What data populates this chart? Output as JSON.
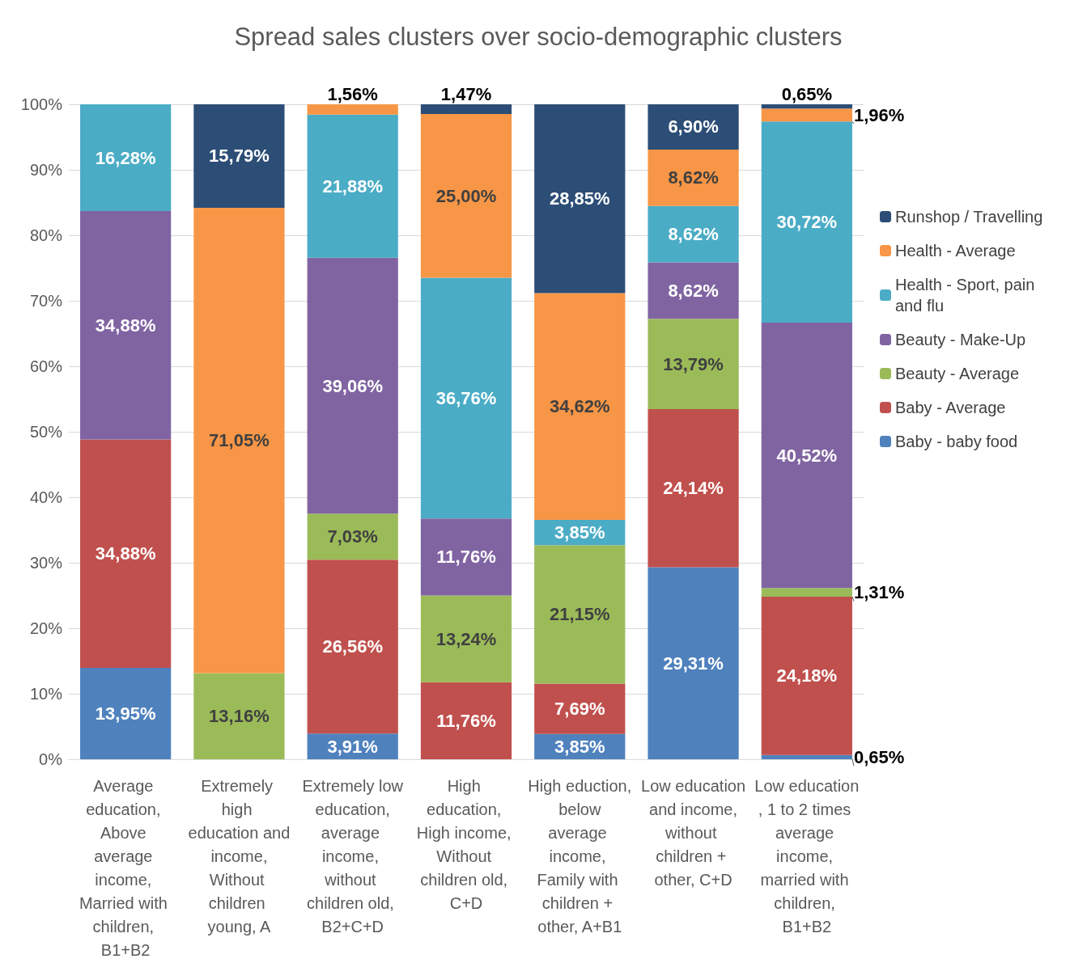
{
  "chart_data": {
    "type": "bar",
    "title": "Spread sales clusters over socio-demographic clusters",
    "stacked": true,
    "grid": "y",
    "legend": "right",
    "categories": [
      "Average education, Above average income, Married with children, B1+B2",
      "Extremely high education and income, Without children young, A",
      "Extremely low education, average income, without children old, B2+C+D",
      "High education, High income, Without children old, C+D",
      "High eduction, below average income, Family with children + other, A+B1",
      "Low education and income, without children + other, C+D",
      "Low education, 1 to 2 times average income, married with children, B1+B2"
    ],
    "ylim": [
      0,
      100
    ],
    "yticks": [
      {
        "value": 0,
        "label": "0%"
      },
      {
        "value": 10,
        "label": "10%"
      },
      {
        "value": 20,
        "label": "20%"
      },
      {
        "value": 30,
        "label": "30%"
      },
      {
        "value": 40,
        "label": "40%"
      },
      {
        "value": 50,
        "label": "50%"
      },
      {
        "value": 60,
        "label": "60%"
      },
      {
        "value": 70,
        "label": "70%"
      },
      {
        "value": 80,
        "label": "80%"
      },
      {
        "value": 90,
        "label": "90%"
      },
      {
        "value": 100,
        "label": "100%"
      }
    ],
    "series": [
      {
        "name": "Baby - baby food",
        "color": "#4f81bd",
        "values": [
          13.95,
          0,
          3.91,
          0,
          3.85,
          29.31,
          0.65
        ],
        "value_labels": [
          "13,95%",
          null,
          "3,91%",
          null,
          "3,85%",
          "29,31%",
          "0,65%"
        ]
      },
      {
        "name": "Baby - Average",
        "color": "#c0504d",
        "values": [
          34.88,
          0,
          26.56,
          11.76,
          7.69,
          24.14,
          24.18
        ],
        "value_labels": [
          "34,88%",
          null,
          "26,56%",
          "11,76%",
          "7,69%",
          "24,14%",
          "24,18%"
        ]
      },
      {
        "name": "Beauty - Average",
        "color": "#9bbb59",
        "values": [
          0,
          13.16,
          7.03,
          13.24,
          21.15,
          13.79,
          1.31
        ],
        "value_labels": [
          null,
          "13,16%",
          "7,03%",
          "13,24%",
          "21,15%",
          "13,79%",
          "1,31%"
        ]
      },
      {
        "name": "Beauty - Make-Up",
        "color": "#8064a2",
        "values": [
          34.88,
          0,
          39.06,
          11.76,
          0,
          8.62,
          40.52
        ],
        "value_labels": [
          "34,88%",
          null,
          "39,06%",
          "11,76%",
          null,
          "8,62%",
          "40,52%"
        ]
      },
      {
        "name": "Health - Sport, pain and flu",
        "color": "#4bacc6",
        "values": [
          16.28,
          0,
          21.88,
          36.76,
          3.85,
          8.62,
          30.72
        ],
        "value_labels": [
          "16,28%",
          null,
          "21,88%",
          "36,76%",
          "3,85%",
          "8,62%",
          "30,72%"
        ]
      },
      {
        "name": "Health - Average",
        "color": "#f79646",
        "values": [
          0,
          71.05,
          1.56,
          25.0,
          34.62,
          8.62,
          1.96
        ],
        "value_labels": [
          null,
          "71,05%",
          "1,56%",
          "25,00%",
          "34,62%",
          "8,62%",
          "1,96%"
        ]
      },
      {
        "name": "Runshop / Travelling",
        "color": "#2c4d75",
        "values": [
          0,
          15.79,
          0,
          1.47,
          28.85,
          6.9,
          0.65
        ],
        "value_labels": [
          null,
          "15,79%",
          null,
          "1,47%",
          "28,85%",
          "6,90%",
          "0,65%"
        ]
      }
    ]
  }
}
